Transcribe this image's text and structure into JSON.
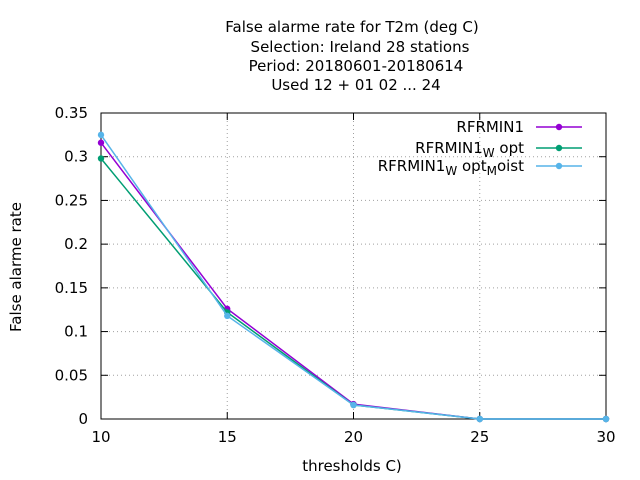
{
  "chart_data": {
    "type": "line",
    "title_lines": [
      "False alarme rate  for T2m (deg C)",
      "Selection: Ireland     28 stations",
      "Period: 20180601-20180614",
      "Used  12 + 01 02 ... 24"
    ],
    "xlabel": "thresholds C)",
    "ylabel": "False alarme rate",
    "xlim": [
      10,
      30
    ],
    "ylim": [
      0,
      0.35
    ],
    "x_ticks": [
      10,
      15,
      20,
      25,
      30
    ],
    "x_tick_labels": [
      "10",
      "15",
      "20",
      "25",
      "30"
    ],
    "y_ticks": [
      0,
      0.05,
      0.1,
      0.15,
      0.2,
      0.25,
      0.3,
      0.35
    ],
    "y_tick_labels": [
      "0",
      "0.05",
      "0.1",
      "0.15",
      "0.2",
      "0.25",
      "0.3",
      "0.35"
    ],
    "grid": true,
    "legend_position": "top-right",
    "x": [
      10,
      15,
      20,
      25,
      30
    ],
    "series": [
      {
        "name": "RFRMIN1",
        "legend_parts": [
          {
            "t": "RFRMIN1",
            "sub": false
          }
        ],
        "color": "#9400d3",
        "values": [
          0.316,
          0.126,
          0.017,
          0.0,
          0.0
        ]
      },
      {
        "name": "RFRMIN1 W opt",
        "legend_parts": [
          {
            "t": "RFRMIN1",
            "sub": false
          },
          {
            "t": "W",
            "sub": true
          },
          {
            "t": " opt",
            "sub": false
          }
        ],
        "color": "#009e73",
        "values": [
          0.298,
          0.122,
          0.016,
          0.0,
          0.0
        ]
      },
      {
        "name": "RFRMIN1 W opt M oist",
        "legend_parts": [
          {
            "t": "RFRMIN1",
            "sub": false
          },
          {
            "t": "W",
            "sub": true
          },
          {
            "t": " opt",
            "sub": false
          },
          {
            "t": "M",
            "sub": true
          },
          {
            "t": "oist",
            "sub": false
          }
        ],
        "color": "#56b4e9",
        "values": [
          0.325,
          0.118,
          0.016,
          0.0,
          0.0
        ]
      }
    ]
  }
}
